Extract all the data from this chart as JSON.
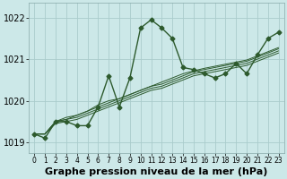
{
  "xlabel": "Graphe pression niveau de la mer (hPa)",
  "background_color": "#cce8e8",
  "grid_color": "#aacccc",
  "line_color": "#2d5a2d",
  "xlim": [
    -0.5,
    23.5
  ],
  "ylim": [
    1018.75,
    1022.35
  ],
  "yticks": [
    1019,
    1020,
    1021,
    1022
  ],
  "xticks": [
    0,
    1,
    2,
    3,
    4,
    5,
    6,
    7,
    8,
    9,
    10,
    11,
    12,
    13,
    14,
    15,
    16,
    17,
    18,
    19,
    20,
    21,
    22,
    23
  ],
  "series_main": [
    1019.2,
    1019.1,
    1019.5,
    1019.5,
    1019.4,
    1019.4,
    1019.85,
    1020.6,
    1019.85,
    1020.55,
    1021.75,
    1021.95,
    1021.75,
    1021.5,
    1020.8,
    1020.75,
    1020.65,
    1020.55,
    1020.65,
    1020.9,
    1020.65,
    1021.1,
    1021.5,
    1021.65
  ],
  "series_bundle": [
    [
      1019.2,
      1019.2,
      1019.45,
      1019.5,
      1019.55,
      1019.65,
      1019.75,
      1019.85,
      1019.95,
      1020.05,
      1020.15,
      1020.25,
      1020.3,
      1020.4,
      1020.5,
      1020.6,
      1020.65,
      1020.7,
      1020.75,
      1020.8,
      1020.85,
      1020.95,
      1021.05,
      1021.15
    ],
    [
      1019.2,
      1019.2,
      1019.5,
      1019.55,
      1019.6,
      1019.7,
      1019.8,
      1019.9,
      1020.0,
      1020.1,
      1020.2,
      1020.3,
      1020.35,
      1020.45,
      1020.55,
      1020.65,
      1020.7,
      1020.75,
      1020.8,
      1020.85,
      1020.9,
      1021.0,
      1021.1,
      1021.2
    ],
    [
      1019.2,
      1019.2,
      1019.5,
      1019.55,
      1019.65,
      1019.75,
      1019.85,
      1019.95,
      1020.05,
      1020.15,
      1020.25,
      1020.35,
      1020.4,
      1020.5,
      1020.6,
      1020.7,
      1020.75,
      1020.8,
      1020.85,
      1020.9,
      1020.95,
      1021.05,
      1021.15,
      1021.25
    ],
    [
      1019.2,
      1019.2,
      1019.5,
      1019.6,
      1019.65,
      1019.75,
      1019.9,
      1020.0,
      1020.05,
      1020.15,
      1020.25,
      1020.35,
      1020.45,
      1020.55,
      1020.65,
      1020.72,
      1020.78,
      1020.83,
      1020.88,
      1020.93,
      1020.98,
      1021.08,
      1021.18,
      1021.28
    ]
  ],
  "xlabel_fontsize": 8,
  "tick_fontsize": 7,
  "xtick_fontsize": 5.5
}
